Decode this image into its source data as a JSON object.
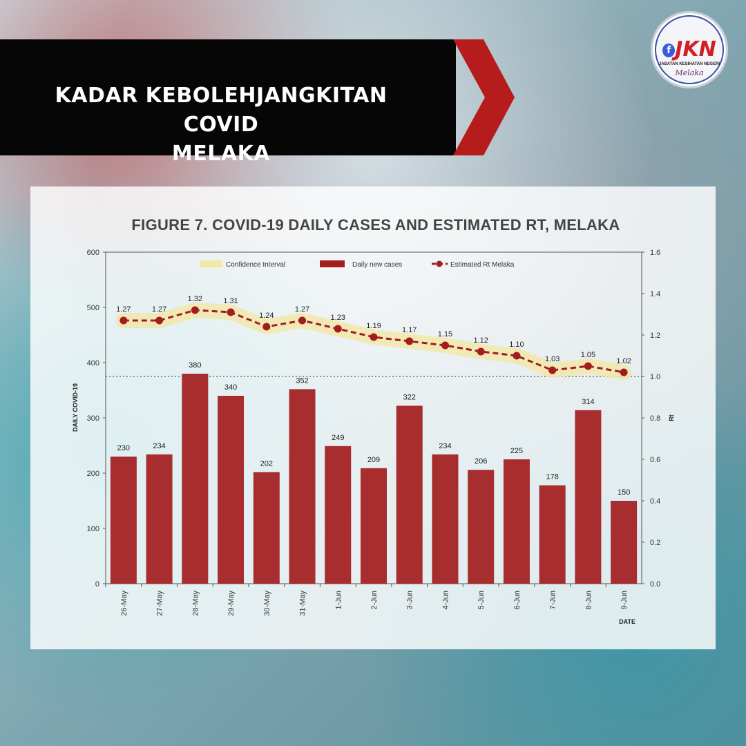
{
  "banner": {
    "title_line1": "KADAR KEBOLEHJANGKITAN COVID",
    "title_line2": "MELAKA",
    "colors": {
      "background": "#060606",
      "accent": "#b71c1c"
    }
  },
  "logo": {
    "text": "JKN",
    "subtitle": "JABATAN KESIHATAN NEGERI",
    "script": "Melaka"
  },
  "figure": {
    "title": "FIGURE 7. COVID-19 DAILY CASES AND ESTIMATED RT, MELAKA"
  },
  "chart_data": {
    "type": "bar",
    "title": "FIGURE 7. COVID-19 DAILY CASES AND ESTIMATED RT, MELAKA",
    "xlabel": "DATE",
    "ylabel": "DAILY COVID-19",
    "y2label": "Rt",
    "ylim": [
      0,
      600
    ],
    "y2lim": [
      0.0,
      1.6
    ],
    "y_ticks": [
      "0",
      "100",
      "200",
      "300",
      "400",
      "500",
      "600"
    ],
    "y2_ticks": [
      "0.0",
      "0.2",
      "0.4",
      "0.6",
      "0.8",
      "1.0",
      "1.2",
      "1.4",
      "1.6"
    ],
    "categories": [
      "26-May",
      "27-May",
      "28-May",
      "29-May",
      "30-May",
      "31-May",
      "1-Jun",
      "2-Jun",
      "3-Jun",
      "4-Jun",
      "5-Jun",
      "6-Jun",
      "7-Jun",
      "8-Jun",
      "9-Jun"
    ],
    "series": [
      {
        "name": "Daily new cases",
        "type": "bar",
        "axis": "left",
        "color": "#a31c1e",
        "values": [
          230,
          234,
          380,
          340,
          202,
          352,
          249,
          209,
          322,
          234,
          206,
          225,
          178,
          314,
          150
        ]
      },
      {
        "name": "Estimated Rt Melaka",
        "type": "line",
        "axis": "right",
        "color": "#a31c1e",
        "values": [
          1.27,
          1.27,
          1.32,
          1.31,
          1.24,
          1.27,
          1.23,
          1.19,
          1.17,
          1.15,
          1.12,
          1.1,
          1.03,
          1.05,
          1.02
        ]
      }
    ],
    "confidence_interval": {
      "name": "Confidence Interval",
      "color": "#f3e7a6"
    },
    "reference_line": {
      "axis": "right",
      "value": 1.0
    },
    "legend": [
      "Confidence Interval",
      "Daily new cases",
      "Estimated Rt Melaka"
    ],
    "legend_position": "top",
    "grid": false
  }
}
